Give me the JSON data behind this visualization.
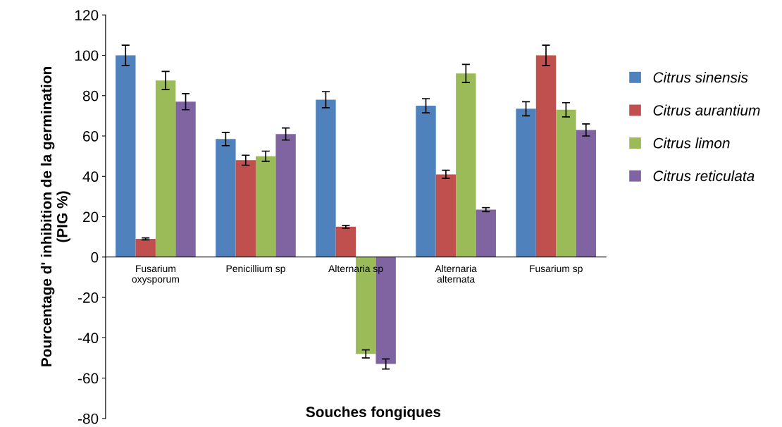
{
  "chart_data": {
    "type": "bar",
    "xlabel": "Souches fongiques",
    "ylabel": "Pourcentage d' inhibition de la germination\n(PIG %)",
    "categories": [
      "Fusarium\noxysporum",
      "Penicillium sp",
      "Alternaria sp",
      "Alternaria\nalternata",
      "Fusarium sp"
    ],
    "series": [
      {
        "name": "Citrus sinensis",
        "color": "#4f81bd",
        "values": [
          100,
          58.5,
          78,
          75,
          73.5
        ],
        "errors": [
          5,
          3.3,
          4,
          3.5,
          3.5
        ]
      },
      {
        "name": "Citrus aurantium",
        "color": "#c0504d",
        "values": [
          9,
          48,
          15,
          41,
          100
        ],
        "errors": [
          0.5,
          2.5,
          0.7,
          2,
          5
        ]
      },
      {
        "name": "Citrus limon",
        "color": "#9bbb59",
        "values": [
          87.5,
          50,
          -48,
          91,
          73
        ],
        "errors": [
          4.5,
          2.5,
          2,
          4.5,
          3.5
        ]
      },
      {
        "name": "Citrus reticulata",
        "color": "#8064a2",
        "values": [
          77,
          61,
          -53,
          23.5,
          63
        ],
        "errors": [
          4,
          3,
          2.5,
          1,
          3
        ]
      }
    ],
    "ylim": [
      -80,
      120
    ],
    "yticks": [
      -80,
      -60,
      -40,
      -20,
      0,
      20,
      40,
      60,
      80,
      100,
      120
    ],
    "grid": false,
    "legend": "right"
  }
}
